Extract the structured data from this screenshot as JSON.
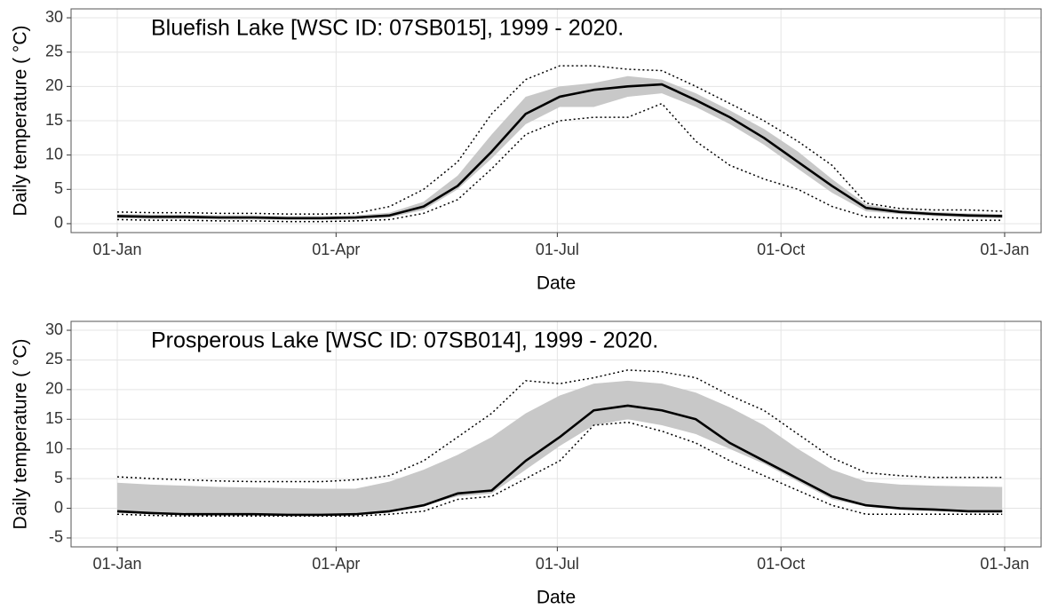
{
  "chart_data": [
    {
      "type": "line",
      "title": "Bluefish Lake  [WSC ID: 07SB015], 1999 - 2020.",
      "xlabel": "Date",
      "ylabel": "Daily temperature ( °C)",
      "x": [
        1,
        15,
        29,
        43,
        57,
        71,
        85,
        99,
        113,
        127,
        141,
        155,
        169,
        183,
        197,
        211,
        225,
        239,
        253,
        267,
        281,
        295,
        309,
        323,
        337,
        351,
        365
      ],
      "xlim": [
        -18,
        381
      ],
      "xticks": [
        {
          "value": 1,
          "label": "01-Jan"
        },
        {
          "value": 91,
          "label": "01-Apr"
        },
        {
          "value": 182,
          "label": "01-Jul"
        },
        {
          "value": 274,
          "label": "01-Oct"
        },
        {
          "value": 366,
          "label": "01-Jan"
        }
      ],
      "ylim": [
        -1.3,
        31.3
      ],
      "yticks": [
        0,
        5,
        10,
        15,
        20,
        25,
        30
      ],
      "grid": true,
      "band": {
        "color": "#c8c8c8",
        "low": [
          0.8,
          0.7,
          0.7,
          0.6,
          0.6,
          0.6,
          0.6,
          0.6,
          0.9,
          2,
          5,
          9.5,
          14.5,
          17,
          17,
          18.5,
          19,
          17,
          14.5,
          11.5,
          8,
          4.5,
          1.8,
          1.4,
          1.1,
          0.9,
          0.8
        ],
        "high": [
          1.4,
          1.3,
          1.3,
          1.2,
          1.2,
          1.1,
          1.1,
          1.2,
          1.6,
          3.2,
          7,
          13,
          18.5,
          20,
          20.5,
          21.5,
          21,
          19,
          16.5,
          13.8,
          10.5,
          6.5,
          2.8,
          2,
          1.7,
          1.5,
          1.4
        ]
      },
      "series": [
        {
          "color": "#000000",
          "dash": "dotted",
          "values": [
            0.6,
            0.5,
            0.5,
            0.4,
            0.4,
            0.3,
            0.3,
            0.4,
            0.6,
            1.5,
            3.5,
            8,
            13,
            15,
            15.5,
            15.5,
            17.5,
            12,
            8.5,
            6.5,
            5,
            2.5,
            1,
            0.8,
            0.6,
            0.5,
            0.5
          ]
        },
        {
          "color": "#000000",
          "dash": "dotted",
          "values": [
            1.7,
            1.6,
            1.6,
            1.5,
            1.5,
            1.4,
            1.4,
            1.5,
            2.5,
            5,
            9,
            16,
            21,
            23,
            23,
            22.5,
            22.3,
            20,
            17.5,
            15,
            12,
            8.5,
            3,
            2.2,
            2,
            2,
            1.8
          ]
        },
        {
          "color": "#000000",
          "dash": "solid",
          "values": [
            1.1,
            1,
            1,
            0.9,
            0.9,
            0.8,
            0.8,
            0.9,
            1.2,
            2.5,
            5.5,
            10.5,
            16,
            18.5,
            19.5,
            20,
            20.3,
            18,
            15.5,
            12.5,
            9,
            5.5,
            2.3,
            1.7,
            1.4,
            1.2,
            1.1
          ]
        }
      ]
    },
    {
      "type": "line",
      "title": "Prosperous Lake  [WSC ID: 07SB014], 1999 - 2020.",
      "xlabel": "Date",
      "ylabel": "Daily temperature ( °C)",
      "x": [
        1,
        15,
        29,
        43,
        57,
        71,
        85,
        99,
        113,
        127,
        141,
        155,
        169,
        183,
        197,
        211,
        225,
        239,
        253,
        267,
        281,
        295,
        309,
        323,
        337,
        351,
        365
      ],
      "xlim": [
        -18,
        381
      ],
      "xticks": [
        {
          "value": 1,
          "label": "01-Jan"
        },
        {
          "value": 91,
          "label": "01-Apr"
        },
        {
          "value": 182,
          "label": "01-Jul"
        },
        {
          "value": 274,
          "label": "01-Oct"
        },
        {
          "value": 366,
          "label": "01-Jan"
        }
      ],
      "ylim": [
        -6.5,
        31.5
      ],
      "yticks": [
        -5,
        0,
        5,
        10,
        15,
        20,
        25,
        30
      ],
      "grid": true,
      "band": {
        "color": "#c8c8c8",
        "low": [
          -0.8,
          -1,
          -1.1,
          -1.1,
          -1.1,
          -1.1,
          -1.1,
          -1.1,
          -0.5,
          0.5,
          2,
          2.5,
          6.5,
          10.5,
          14,
          15,
          14,
          12.5,
          10,
          7.5,
          4.5,
          1.5,
          0.3,
          -0.3,
          -0.5,
          -0.6,
          -0.6
        ],
        "high": [
          4.3,
          4,
          3.8,
          3.6,
          3.5,
          3.4,
          3.3,
          3.3,
          4.5,
          6.5,
          9,
          12,
          16,
          19,
          21,
          21.5,
          21,
          19.5,
          17,
          14,
          10,
          6.5,
          4.5,
          4,
          3.8,
          3.7,
          3.6
        ]
      },
      "series": [
        {
          "color": "#000000",
          "dash": "dotted",
          "values": [
            -1,
            -1.2,
            -1.3,
            -1.3,
            -1.3,
            -1.3,
            -1.3,
            -1.3,
            -1,
            -0.5,
            1.5,
            2,
            5,
            8,
            14,
            14.5,
            13,
            11,
            8,
            5.5,
            3,
            0.5,
            -1,
            -1,
            -1,
            -1,
            -1
          ]
        },
        {
          "color": "#000000",
          "dash": "dotted",
          "values": [
            5.3,
            5,
            4.8,
            4.6,
            4.5,
            4.5,
            4.5,
            4.8,
            5.5,
            8,
            12,
            16,
            21.5,
            21,
            22,
            23.3,
            23,
            22,
            19,
            16.5,
            12.5,
            8.5,
            6,
            5.5,
            5.2,
            5.2,
            5.2
          ]
        },
        {
          "color": "#000000",
          "dash": "solid",
          "values": [
            -0.5,
            -0.8,
            -1,
            -1,
            -1,
            -1.1,
            -1.1,
            -1,
            -0.5,
            0.5,
            2.5,
            3,
            8,
            12,
            16.5,
            17.3,
            16.5,
            15,
            11,
            8,
            5,
            2,
            0.5,
            0,
            -0.2,
            -0.5,
            -0.5
          ]
        }
      ]
    }
  ]
}
